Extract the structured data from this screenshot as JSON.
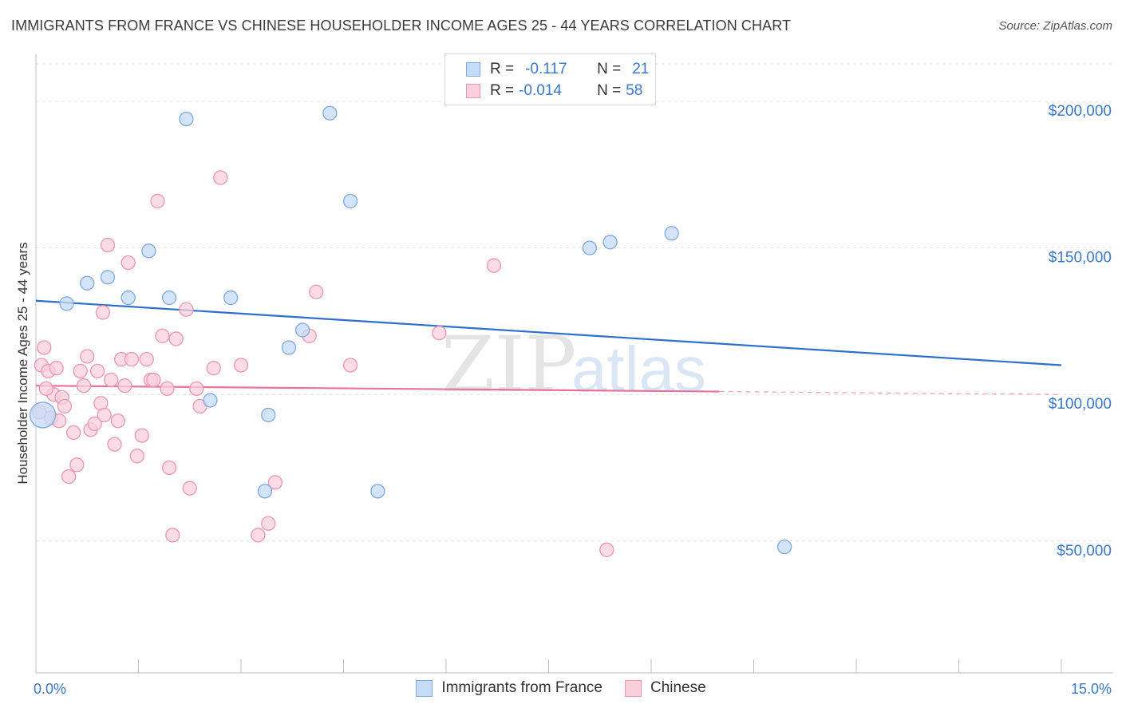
{
  "title": "IMMIGRANTS FROM FRANCE VS CHINESE HOUSEHOLDER INCOME AGES 25 - 44 YEARS CORRELATION CHART",
  "source": "Source: ZipAtlas.com",
  "watermark": {
    "zip": "ZIP",
    "atlas": "atlas"
  },
  "colors": {
    "france_fill": "#c6dbf5",
    "france_stroke": "#7fa8df",
    "france_line": "#2f6fcc",
    "chinese_fill": "#f9cfdc",
    "chinese_stroke": "#ec96b0",
    "chinese_line": "#e8739a",
    "axis_text": "#3b78c6",
    "grid": "#e3e3e3"
  },
  "legend": {
    "rows": [
      {
        "r_label": "R =",
        "r_value": "-0.117",
        "n_label": "N =",
        "n_value": "21"
      },
      {
        "r_label": "R =",
        "r_value": "-0.014",
        "n_label": "N =",
        "n_value": "58"
      }
    ]
  },
  "bottom_legend": [
    "Immigrants from France",
    "Chinese"
  ],
  "chart_data": {
    "type": "scatter",
    "title": "IMMIGRANTS FROM FRANCE VS CHINESE HOUSEHOLDER INCOME AGES 25 - 44 YEARS CORRELATION CHART",
    "xlabel": "",
    "ylabel": "Householder Income Ages 25 - 44 years",
    "xlim": [
      0,
      15
    ],
    "ylim": [
      5000,
      215000
    ],
    "x_tick_labels": [
      "0.0%",
      "15.0%"
    ],
    "y_ticks": [
      50000,
      100000,
      150000,
      200000
    ],
    "y_tick_labels": [
      "$50,000",
      "$100,000",
      "$150,000",
      "$200,000"
    ],
    "grid": true,
    "series": [
      {
        "name": "Immigrants from France",
        "trend": {
          "x": [
            0,
            15
          ],
          "y": [
            132000,
            110000
          ],
          "dashed_from": null
        },
        "points": [
          {
            "x": 0.1,
            "y": 93000,
            "big": true
          },
          {
            "x": 0.45,
            "y": 131000
          },
          {
            "x": 0.75,
            "y": 138000
          },
          {
            "x": 1.05,
            "y": 140000
          },
          {
            "x": 1.35,
            "y": 133000
          },
          {
            "x": 1.65,
            "y": 149000
          },
          {
            "x": 1.95,
            "y": 133000
          },
          {
            "x": 2.2,
            "y": 194000
          },
          {
            "x": 2.55,
            "y": 98000
          },
          {
            "x": 2.85,
            "y": 133000
          },
          {
            "x": 3.4,
            "y": 93000
          },
          {
            "x": 3.35,
            "y": 67000
          },
          {
            "x": 3.7,
            "y": 116000
          },
          {
            "x": 3.9,
            "y": 122000
          },
          {
            "x": 4.3,
            "y": 196000
          },
          {
            "x": 4.6,
            "y": 166000
          },
          {
            "x": 5.0,
            "y": 67000
          },
          {
            "x": 8.1,
            "y": 150000
          },
          {
            "x": 8.4,
            "y": 152000
          },
          {
            "x": 9.3,
            "y": 155000
          },
          {
            "x": 10.95,
            "y": 48000
          }
        ]
      },
      {
        "name": "Chinese",
        "trend": {
          "x": [
            0,
            15
          ],
          "y": [
            103000,
            100000
          ],
          "dashed_from": 10.0
        },
        "points": [
          {
            "x": 0.05,
            "y": 94000
          },
          {
            "x": 0.08,
            "y": 110000
          },
          {
            "x": 0.12,
            "y": 116000
          },
          {
            "x": 0.18,
            "y": 108000
          },
          {
            "x": 0.22,
            "y": 92000
          },
          {
            "x": 0.26,
            "y": 100000
          },
          {
            "x": 0.3,
            "y": 109000
          },
          {
            "x": 0.34,
            "y": 91000
          },
          {
            "x": 0.38,
            "y": 99000
          },
          {
            "x": 0.42,
            "y": 96000
          },
          {
            "x": 0.48,
            "y": 72000
          },
          {
            "x": 0.55,
            "y": 87000
          },
          {
            "x": 0.6,
            "y": 76000
          },
          {
            "x": 0.65,
            "y": 108000
          },
          {
            "x": 0.7,
            "y": 103000
          },
          {
            "x": 0.75,
            "y": 113000
          },
          {
            "x": 0.8,
            "y": 88000
          },
          {
            "x": 0.86,
            "y": 90000
          },
          {
            "x": 0.9,
            "y": 108000
          },
          {
            "x": 0.95,
            "y": 97000
          },
          {
            "x": 0.98,
            "y": 128000
          },
          {
            "x": 1.05,
            "y": 151000
          },
          {
            "x": 1.1,
            "y": 105000
          },
          {
            "x": 1.15,
            "y": 83000
          },
          {
            "x": 1.2,
            "y": 91000
          },
          {
            "x": 1.25,
            "y": 112000
          },
          {
            "x": 1.3,
            "y": 103000
          },
          {
            "x": 1.35,
            "y": 145000
          },
          {
            "x": 1.4,
            "y": 112000
          },
          {
            "x": 1.48,
            "y": 79000
          },
          {
            "x": 1.55,
            "y": 86000
          },
          {
            "x": 1.62,
            "y": 112000
          },
          {
            "x": 1.68,
            "y": 105000
          },
          {
            "x": 1.72,
            "y": 105000
          },
          {
            "x": 1.78,
            "y": 166000
          },
          {
            "x": 1.85,
            "y": 120000
          },
          {
            "x": 1.92,
            "y": 102000
          },
          {
            "x": 1.95,
            "y": 75000
          },
          {
            "x": 2.0,
            "y": 52000
          },
          {
            "x": 2.05,
            "y": 119000
          },
          {
            "x": 2.2,
            "y": 129000
          },
          {
            "x": 2.25,
            "y": 68000
          },
          {
            "x": 2.35,
            "y": 102000
          },
          {
            "x": 2.4,
            "y": 96000
          },
          {
            "x": 2.6,
            "y": 109000
          },
          {
            "x": 2.7,
            "y": 174000
          },
          {
            "x": 3.0,
            "y": 110000
          },
          {
            "x": 3.25,
            "y": 52000
          },
          {
            "x": 3.4,
            "y": 56000
          },
          {
            "x": 3.5,
            "y": 70000
          },
          {
            "x": 4.0,
            "y": 120000
          },
          {
            "x": 4.1,
            "y": 135000
          },
          {
            "x": 4.6,
            "y": 110000
          },
          {
            "x": 5.9,
            "y": 121000
          },
          {
            "x": 6.7,
            "y": 144000
          },
          {
            "x": 8.35,
            "y": 47000
          },
          {
            "x": 0.15,
            "y": 102000
          },
          {
            "x": 1.0,
            "y": 93000
          }
        ]
      }
    ]
  }
}
